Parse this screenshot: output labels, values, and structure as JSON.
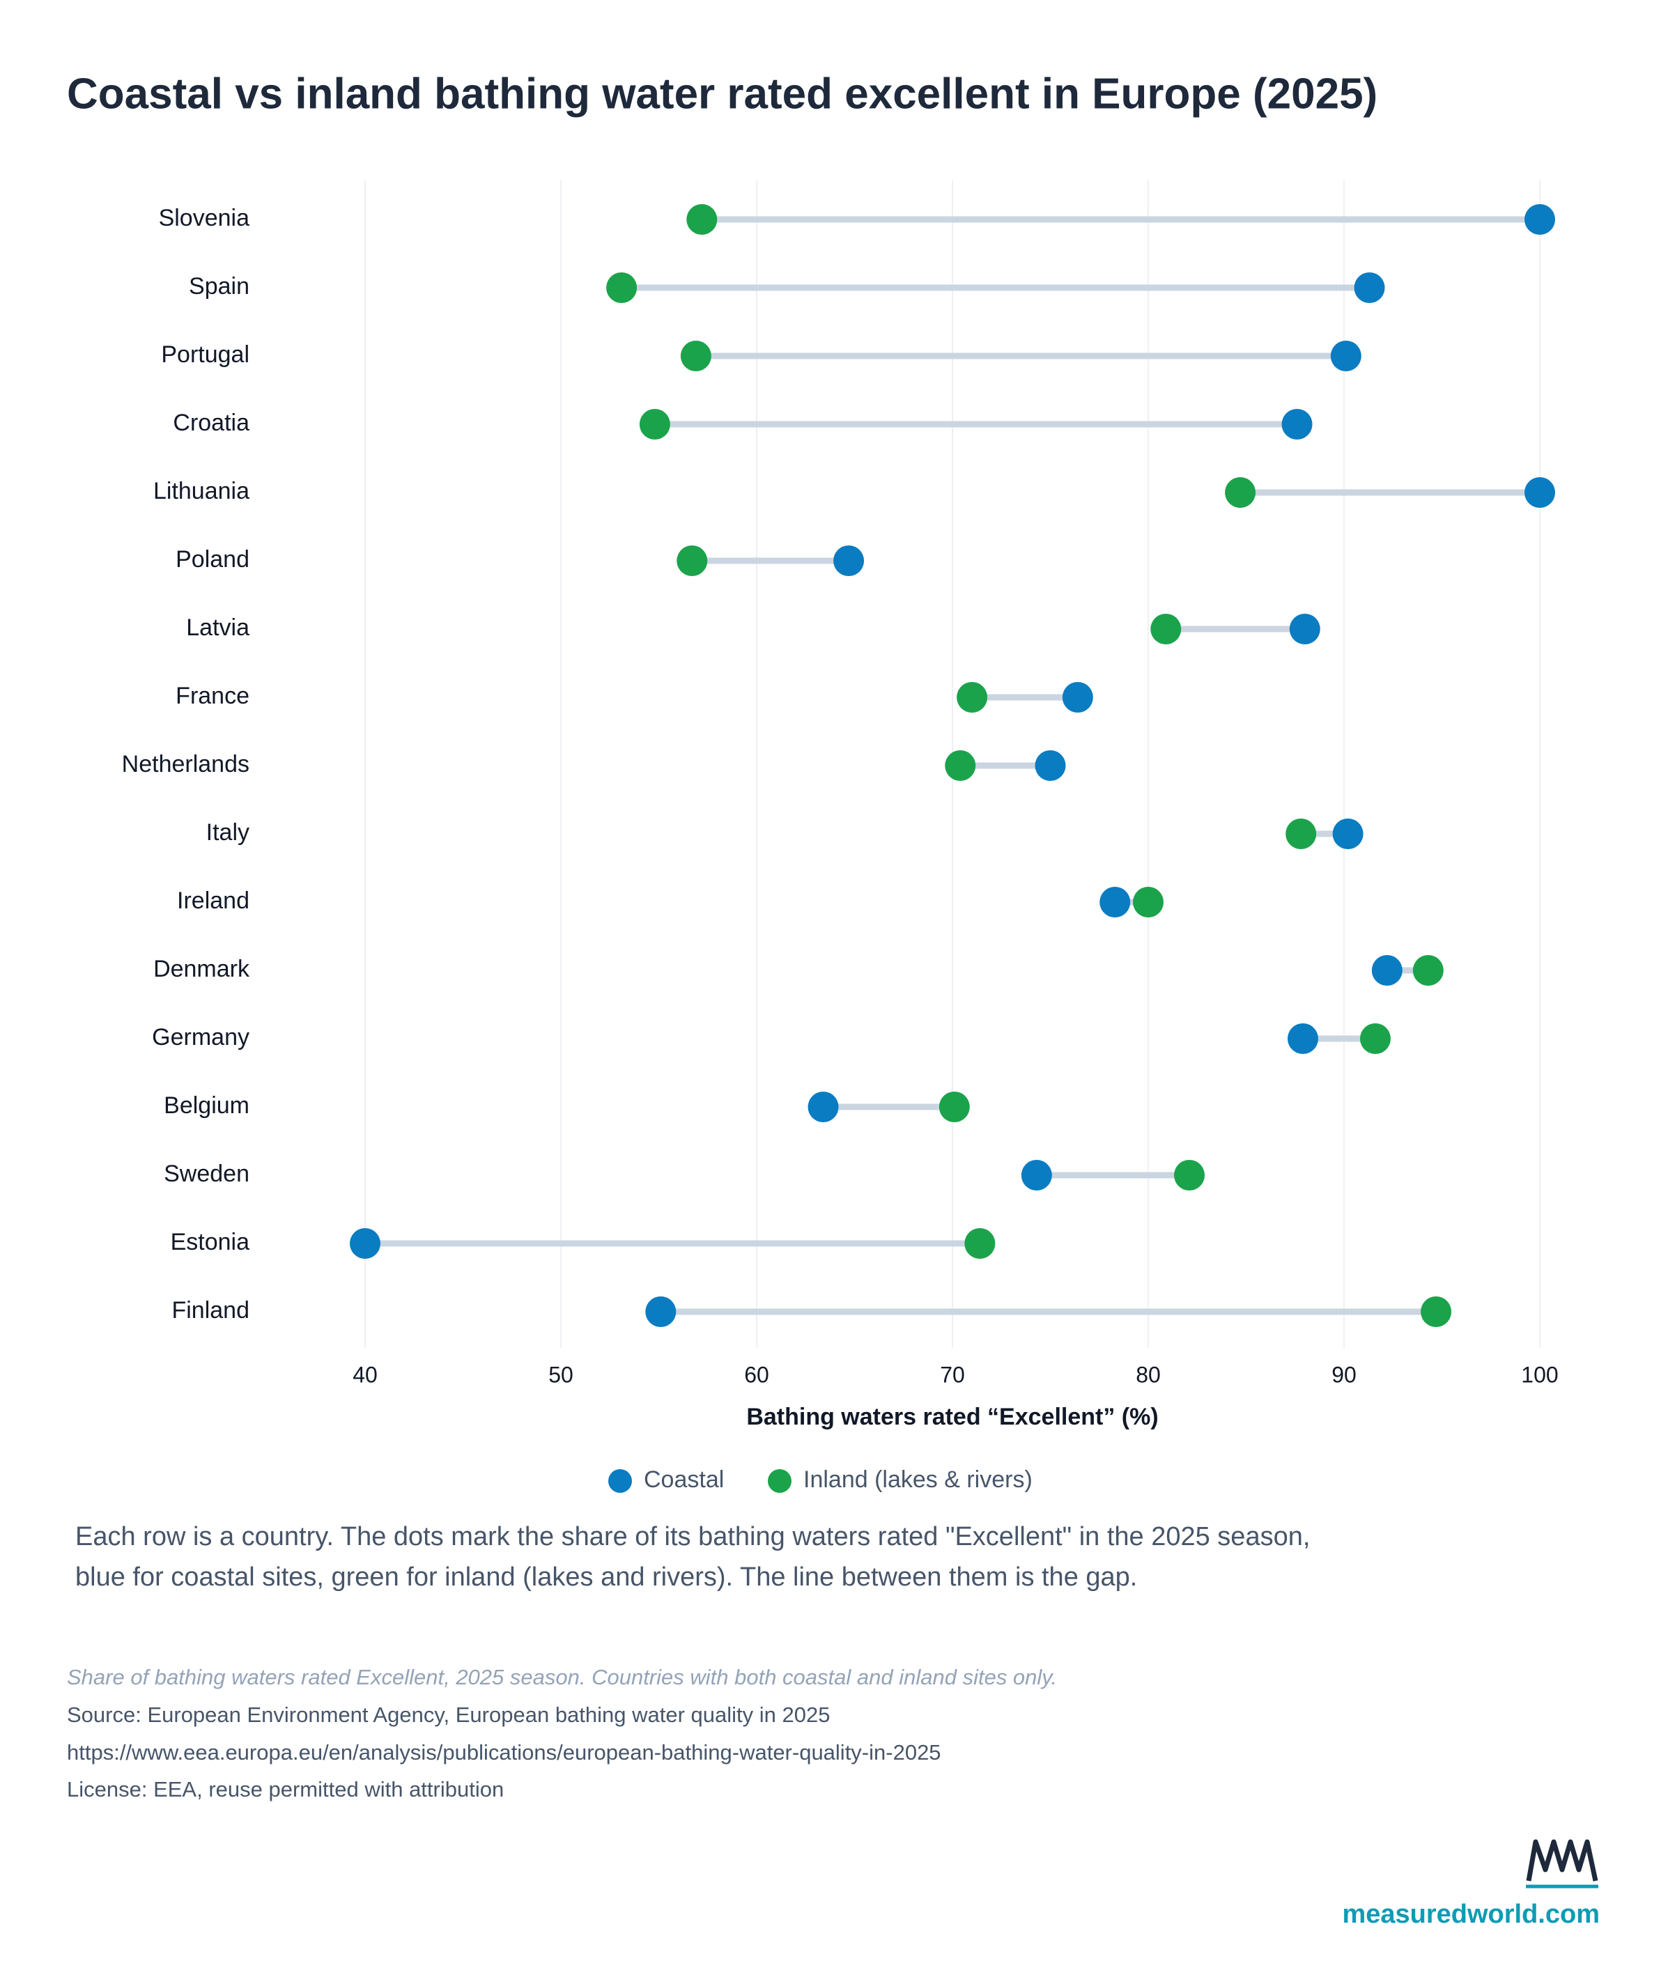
{
  "chart_data": {
    "type": "dumbbell",
    "title": "Coastal vs inland bathing water rated excellent in Europe (2025)",
    "x_label": "Bathing waters rated “Excellent” (%)",
    "categories": [
      "Slovenia",
      "Spain",
      "Portugal",
      "Croatia",
      "Lithuania",
      "Poland",
      "Latvia",
      "France",
      "Netherlands",
      "Italy",
      "Ireland",
      "Denmark",
      "Germany",
      "Belgium",
      "Sweden",
      "Estonia",
      "Finland"
    ],
    "series": [
      {
        "name": "Coastal",
        "color": "#0a7cc1",
        "values": [
          100,
          91.3,
          90.1,
          87.6,
          100,
          64.7,
          88.0,
          76.4,
          75.0,
          90.2,
          78.3,
          92.2,
          87.9,
          63.4,
          74.3,
          40,
          55.1
        ]
      },
      {
        "name": "Inland (lakes & rivers)",
        "color": "#1ba34b",
        "values": [
          57.2,
          53.1,
          56.9,
          54.8,
          84.7,
          56.7,
          80.9,
          71.0,
          70.4,
          87.8,
          80.0,
          94.3,
          91.6,
          70.1,
          82.1,
          71.4,
          94.7
        ]
      }
    ],
    "connector_color": "#cbd5e1",
    "xlim": [
      40,
      100
    ],
    "xticks": [
      40,
      50,
      60,
      70,
      80,
      90,
      100
    ],
    "grid": true,
    "legend": "bottom",
    "description": [
      "Each row is a country. The dots mark the share of its bathing waters rated \"Excellent\" in the 2025 season,",
      "blue for coastal sites, green for inland (lakes and rivers). The line between them is the gap."
    ],
    "note": "Share of bathing waters rated Excellent, 2025 season. Countries with both coastal and inland sites only.",
    "source": "Source: European Environment Agency, European bathing water quality in 2025",
    "url": "https://www.eea.europa.eu/en/analysis/publications/european-bathing-water-quality-in-2025",
    "license": "License: EEA, reuse permitted with attribution",
    "brand": "measuredworld.com"
  }
}
